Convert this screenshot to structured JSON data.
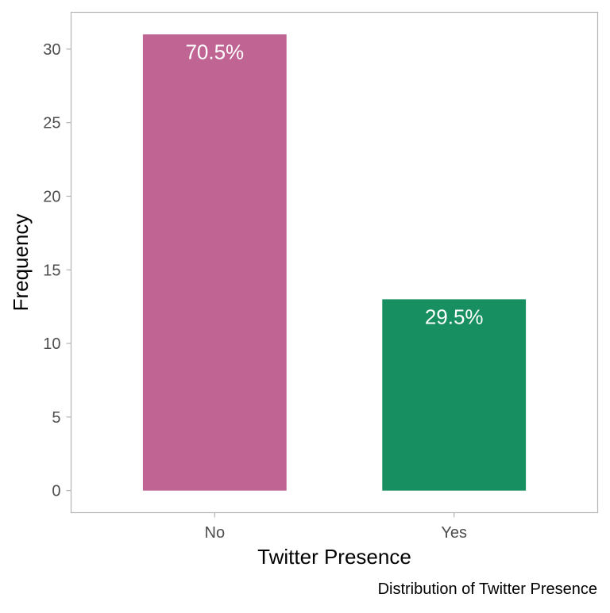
{
  "chart_data": {
    "type": "bar",
    "categories": [
      "No",
      "Yes"
    ],
    "values": [
      31,
      13
    ],
    "value_labels": [
      "70.5%",
      "29.5%"
    ],
    "colors": [
      "#BF6493",
      "#178F60"
    ],
    "xlabel": "Twitter Presence",
    "ylabel": "Frequency",
    "caption": "Distribution of Twitter Presence",
    "ylim": [
      -1.5,
      32.5
    ],
    "yticks": [
      0,
      5,
      10,
      15,
      20,
      25,
      30
    ],
    "grid": false,
    "legend": "none"
  }
}
